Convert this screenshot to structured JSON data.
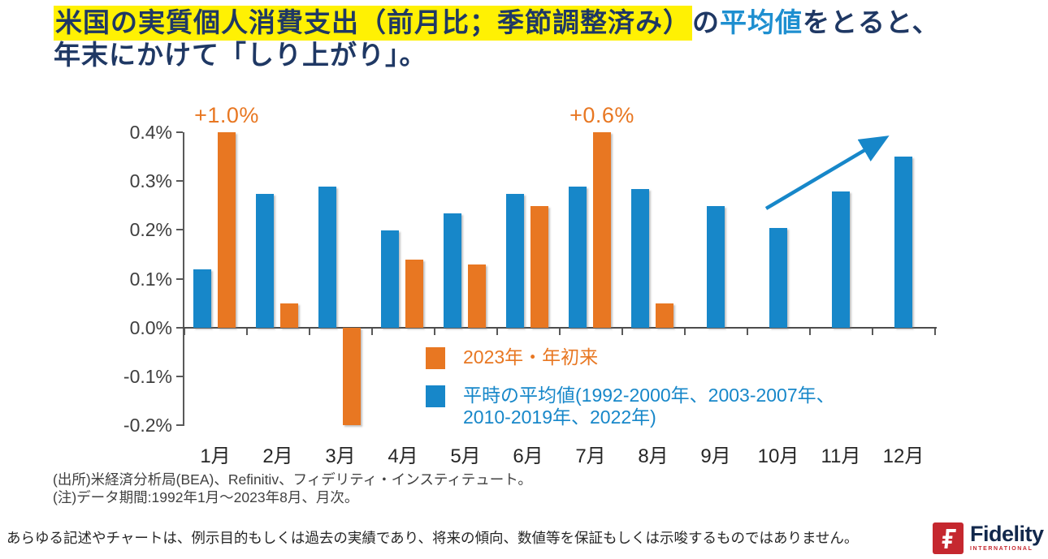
{
  "title": {
    "highlight": "米国の実質個人消費支出（前月比；季節調整済み）",
    "connector": "の",
    "accent": "平均値",
    "tail": "をとると、",
    "line2": "年末にかけて「しり上がり」。"
  },
  "chart_data": {
    "type": "bar",
    "categories": [
      "1月",
      "2月",
      "3月",
      "4月",
      "5月",
      "6月",
      "7月",
      "8月",
      "9月",
      "10月",
      "11月",
      "12月"
    ],
    "series": [
      {
        "name": "2023年・年初来",
        "color": "#E87722",
        "values": [
          1.0,
          0.05,
          -0.2,
          0.14,
          0.13,
          0.25,
          0.6,
          0.05,
          null,
          null,
          null,
          null
        ]
      },
      {
        "name": "平時の平均値(1992-2000年、2003-2007年、2010-2019年、2022年)",
        "color": "#1787C9",
        "values": [
          0.12,
          0.275,
          0.29,
          0.2,
          0.235,
          0.275,
          0.29,
          0.285,
          0.25,
          0.205,
          0.28,
          0.35
        ]
      }
    ],
    "ylim": [
      -0.2,
      0.4
    ],
    "ytick_labels": [
      "0.4%",
      "0.3%",
      "0.2%",
      "0.1%",
      "0.0%",
      "-0.1%",
      "-0.2%"
    ],
    "unit": "%",
    "grid": false,
    "legend_position": "inside-bottom-center",
    "annotations": [
      {
        "text": "+1.0%",
        "month_index": 0
      },
      {
        "text": "+0.6%",
        "month_index": 6
      }
    ],
    "legend": [
      {
        "color": "#E87722",
        "lines": [
          "2023年・年初来"
        ]
      },
      {
        "color": "#1787C9",
        "lines": [
          "平時の平均値(1992-2000年、2003-2007年、",
          "2010-2019年、2022年)"
        ]
      }
    ],
    "trend_arrow": {
      "description": "年末に向けた上昇を示す矢印",
      "color": "#1787C9"
    }
  },
  "notes": {
    "source": "(出所)米経済分析局(BEA)、Refinitiv、フィデリティ・インスティテュート。",
    "period": "(注)データ期間:1992年1月～2023年8月、月次。"
  },
  "footer": {
    "disclaimer": "あらゆる記述やチャートは、例示目的もしくは過去の実績であり、将来の傾向、数値等を保証もしくは示唆するものではありません。",
    "logo": {
      "brand": "Fidelity",
      "sub": "INTERNATIONAL",
      "box_color": "#C5282F",
      "brand_color": "#12284C"
    }
  }
}
